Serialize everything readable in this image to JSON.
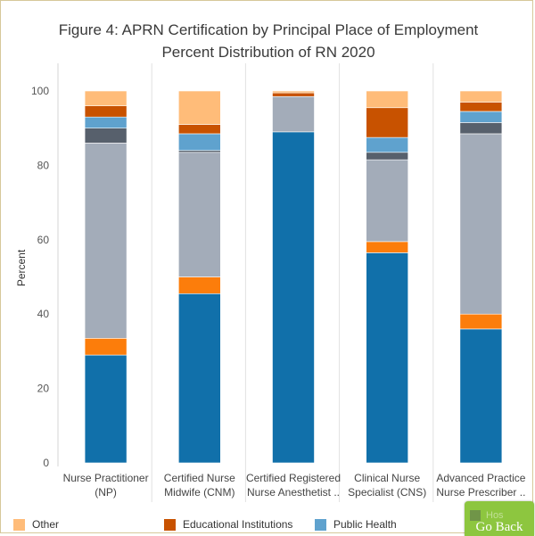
{
  "chart_data": {
    "type": "stacked-bar",
    "title": "Figure 4: APRN Certification by Principal Place of Employment",
    "subtitle": "Percent Distribution of RN 2020",
    "ylabel": "Percent",
    "xlabel": "",
    "ylim": [
      0,
      100
    ],
    "yticks": [
      0,
      20,
      40,
      60,
      80,
      100
    ],
    "grid": false,
    "legend_position": "bottom",
    "categories": [
      [
        "Nurse Practitioner",
        "(NP)"
      ],
      [
        "Certified Nurse",
        "Midwife (CNM)"
      ],
      [
        "Certified Registered",
        "Nurse Anesthetist .."
      ],
      [
        "Clinical Nurse",
        "Specialist (CNS)"
      ],
      [
        "Advanced Practice",
        "Nurse Prescriber .."
      ]
    ],
    "series": [
      {
        "name": "Hospital",
        "color": "#1170aa",
        "values": [
          29.0,
          45.5,
          89.0,
          56.5,
          36.0
        ]
      },
      {
        "name": "",
        "color": "#fc7d0b",
        "values": [
          4.5,
          4.5,
          0.0,
          3.0,
          4.0
        ]
      },
      {
        "name": "",
        "color": "#a3acb9",
        "values": [
          52.5,
          33.5,
          9.5,
          22.0,
          48.5
        ]
      },
      {
        "name": "",
        "color": "#57606c",
        "values": [
          4.0,
          0.5,
          0.0,
          2.0,
          3.0
        ]
      },
      {
        "name": "Public Health",
        "color": "#5fa2ce",
        "values": [
          3.0,
          4.5,
          0.0,
          4.0,
          3.0
        ]
      },
      {
        "name": "Educational Institutions",
        "color": "#c85200",
        "values": [
          3.0,
          2.5,
          1.0,
          8.0,
          2.5
        ]
      },
      {
        "name": "Other",
        "color": "#ffbc79",
        "values": [
          4.0,
          9.0,
          0.5,
          4.5,
          3.0
        ]
      }
    ]
  },
  "legend": {
    "items": [
      {
        "label": "Other",
        "color": "#ffbc79"
      },
      {
        "label": "Educational Institutions",
        "color": "#c85200"
      },
      {
        "label": "Public Health",
        "color": "#5fa2ce"
      }
    ]
  },
  "go_back": {
    "label": "Go Back",
    "ghost_text": "Hos"
  }
}
